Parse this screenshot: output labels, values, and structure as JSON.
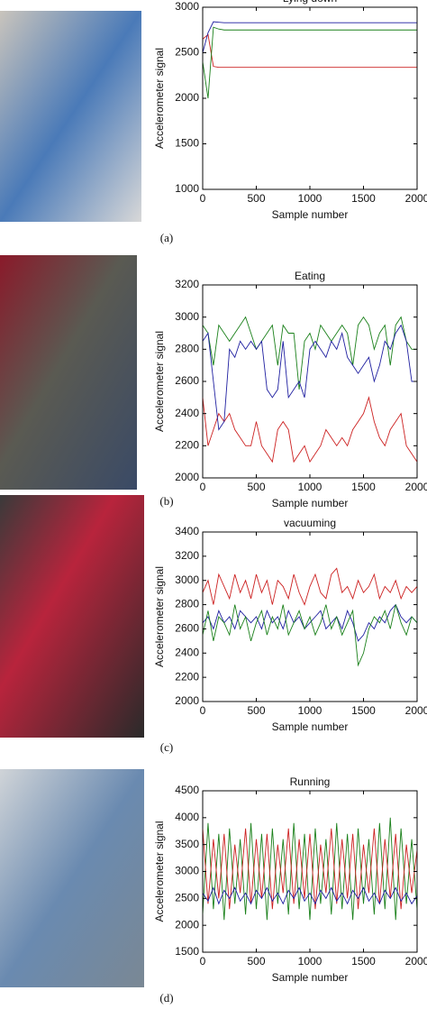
{
  "chart_data": [
    {
      "type": "line",
      "title": "Lying down",
      "xlabel": "Sample number",
      "ylabel": "Accelerometer signal",
      "label": "(a)",
      "xlim": [
        0,
        2000
      ],
      "xticks": [
        0,
        500,
        1000,
        1500,
        2000
      ],
      "ylim": [
        1000,
        3000
      ],
      "yticks": [
        1000,
        1500,
        2000,
        2500,
        3000
      ],
      "x": [
        0,
        50,
        100,
        150,
        200,
        250,
        300,
        350,
        400,
        450,
        500,
        550,
        600,
        650,
        700,
        750,
        800,
        850,
        900,
        950,
        1000,
        1050,
        1100,
        1150,
        1200,
        1250,
        1300,
        1350,
        1400,
        1450,
        1500,
        1550,
        1600,
        1650,
        1700,
        1750,
        1800,
        1850,
        1900,
        1950,
        2000
      ],
      "series": [
        {
          "color": "#cc2020",
          "values": [
            2650,
            2700,
            2350,
            2340,
            2340,
            2340,
            2340,
            2340,
            2340,
            2340,
            2340,
            2340,
            2340,
            2340,
            2340,
            2340,
            2340,
            2340,
            2340,
            2340,
            2340,
            2340,
            2340,
            2340,
            2340,
            2340,
            2340,
            2340,
            2340,
            2340,
            2340,
            2340,
            2340,
            2340,
            2340,
            2340,
            2340,
            2340,
            2340,
            2340,
            2340
          ]
        },
        {
          "color": "#1a801a",
          "values": [
            2400,
            2000,
            2780,
            2760,
            2750,
            2750,
            2750,
            2750,
            2750,
            2750,
            2750,
            2750,
            2750,
            2750,
            2750,
            2750,
            2750,
            2750,
            2750,
            2750,
            2750,
            2750,
            2750,
            2750,
            2750,
            2750,
            2750,
            2750,
            2750,
            2750,
            2750,
            2750,
            2750,
            2750,
            2750,
            2750,
            2750,
            2750,
            2750,
            2750,
            2750
          ]
        },
        {
          "color": "#1f1fa0",
          "values": [
            2500,
            2720,
            2840,
            2835,
            2830,
            2830,
            2830,
            2830,
            2830,
            2830,
            2830,
            2830,
            2830,
            2830,
            2830,
            2830,
            2830,
            2830,
            2830,
            2830,
            2830,
            2830,
            2830,
            2830,
            2830,
            2830,
            2830,
            2830,
            2830,
            2830,
            2830,
            2830,
            2830,
            2830,
            2830,
            2830,
            2830,
            2830,
            2830,
            2830,
            2830
          ]
        }
      ]
    },
    {
      "type": "line",
      "title": "Eating",
      "xlabel": "Sample number",
      "ylabel": "Accelerometer signal",
      "label": "(b)",
      "xlim": [
        0,
        2000
      ],
      "xticks": [
        0,
        500,
        1000,
        1500,
        2000
      ],
      "ylim": [
        2000,
        3200
      ],
      "yticks": [
        2000,
        2200,
        2400,
        2600,
        2800,
        3000,
        3200
      ],
      "x": [
        0,
        50,
        100,
        150,
        200,
        250,
        300,
        350,
        400,
        450,
        500,
        550,
        600,
        650,
        700,
        750,
        800,
        850,
        900,
        950,
        1000,
        1050,
        1100,
        1150,
        1200,
        1250,
        1300,
        1350,
        1400,
        1450,
        1500,
        1550,
        1600,
        1650,
        1700,
        1750,
        1800,
        1850,
        1900,
        1950,
        2000
      ],
      "series": [
        {
          "color": "#cc2020",
          "values": [
            2500,
            2200,
            2300,
            2400,
            2350,
            2400,
            2300,
            2250,
            2200,
            2200,
            2350,
            2200,
            2150,
            2100,
            2300,
            2350,
            2300,
            2100,
            2150,
            2200,
            2100,
            2150,
            2200,
            2300,
            2250,
            2200,
            2250,
            2200,
            2300,
            2350,
            2400,
            2500,
            2350,
            2250,
            2200,
            2300,
            2350,
            2400,
            2200,
            2150,
            2100
          ]
        },
        {
          "color": "#1a801a",
          "values": [
            2950,
            2900,
            2700,
            2950,
            2900,
            2850,
            2900,
            2950,
            3000,
            2900,
            2800,
            2850,
            2900,
            2950,
            2700,
            2950,
            2900,
            2900,
            2550,
            2850,
            2900,
            2800,
            2950,
            2900,
            2850,
            2900,
            2950,
            2900,
            2700,
            2950,
            3000,
            2950,
            2800,
            2900,
            2950,
            2700,
            2950,
            3000,
            2850,
            2800,
            2800
          ]
        },
        {
          "color": "#1f1fa0",
          "values": [
            2850,
            2900,
            2600,
            2300,
            2350,
            2800,
            2750,
            2850,
            2800,
            2850,
            2800,
            2850,
            2550,
            2500,
            2550,
            2850,
            2500,
            2550,
            2600,
            2500,
            2800,
            2850,
            2800,
            2750,
            2850,
            2800,
            2900,
            2750,
            2700,
            2650,
            2700,
            2750,
            2600,
            2700,
            2850,
            2800,
            2900,
            2950,
            2850,
            2600,
            2600
          ]
        }
      ]
    },
    {
      "type": "line",
      "title": "vacuuming",
      "xlabel": "Sample number",
      "ylabel": "Accelerometer signal",
      "label": "(c)",
      "xlim": [
        0,
        2000
      ],
      "xticks": [
        0,
        500,
        1000,
        1500,
        2000
      ],
      "ylim": [
        2000,
        3400
      ],
      "yticks": [
        2000,
        2200,
        2400,
        2600,
        2800,
        3000,
        3200,
        3400
      ],
      "x": [
        0,
        50,
        100,
        150,
        200,
        250,
        300,
        350,
        400,
        450,
        500,
        550,
        600,
        650,
        700,
        750,
        800,
        850,
        900,
        950,
        1000,
        1050,
        1100,
        1150,
        1200,
        1250,
        1300,
        1350,
        1400,
        1450,
        1500,
        1550,
        1600,
        1650,
        1700,
        1750,
        1800,
        1850,
        1900,
        1950,
        2000
      ],
      "series": [
        {
          "color": "#cc2020",
          "values": [
            2900,
            3000,
            2800,
            3050,
            2950,
            2850,
            3050,
            2900,
            3000,
            2850,
            3050,
            2900,
            3000,
            2800,
            3000,
            2950,
            2850,
            3050,
            2900,
            2800,
            2950,
            3050,
            2900,
            2850,
            3050,
            3100,
            2900,
            2950,
            2850,
            3000,
            2900,
            2950,
            3050,
            2850,
            2950,
            2900,
            3000,
            2850,
            2950,
            2900,
            2950
          ]
        },
        {
          "color": "#1f1fa0",
          "values": [
            2650,
            2700,
            2600,
            2750,
            2650,
            2700,
            2600,
            2750,
            2700,
            2650,
            2700,
            2600,
            2750,
            2650,
            2700,
            2600,
            2750,
            2650,
            2700,
            2600,
            2650,
            2700,
            2750,
            2600,
            2650,
            2700,
            2600,
            2750,
            2650,
            2500,
            2550,
            2650,
            2600,
            2700,
            2650,
            2750,
            2800,
            2700,
            2650,
            2700,
            2650
          ]
        },
        {
          "color": "#1a801a",
          "values": [
            2550,
            2750,
            2500,
            2700,
            2650,
            2550,
            2800,
            2600,
            2700,
            2500,
            2650,
            2750,
            2550,
            2700,
            2600,
            2800,
            2550,
            2650,
            2750,
            2600,
            2700,
            2550,
            2650,
            2800,
            2600,
            2700,
            2550,
            2650,
            2750,
            2300,
            2400,
            2600,
            2700,
            2650,
            2750,
            2600,
            2800,
            2650,
            2550,
            2700,
            2650
          ]
        }
      ]
    },
    {
      "type": "line",
      "title": "Running",
      "xlabel": "Sample number",
      "ylabel": "Accelerometer signal",
      "label": "(d)",
      "xlim": [
        0,
        2000
      ],
      "xticks": [
        0,
        500,
        1000,
        1500,
        2000
      ],
      "ylim": [
        1500,
        4500
      ],
      "yticks": [
        1500,
        2000,
        2500,
        3000,
        3500,
        4000,
        4500
      ],
      "x": [
        0,
        50,
        100,
        150,
        200,
        250,
        300,
        350,
        400,
        450,
        500,
        550,
        600,
        650,
        700,
        750,
        800,
        850,
        900,
        950,
        1000,
        1050,
        1100,
        1150,
        1200,
        1250,
        1300,
        1350,
        1400,
        1450,
        1500,
        1550,
        1600,
        1650,
        1700,
        1750,
        1800,
        1850,
        1900,
        1950,
        2000
      ],
      "series": [
        {
          "color": "#1a801a",
          "values": [
            2200,
            3900,
            2300,
            3700,
            2100,
            3800,
            2400,
            3600,
            2200,
            3900,
            2300,
            3700,
            2100,
            3800,
            2400,
            3600,
            2200,
            3900,
            2300,
            3700,
            2100,
            3800,
            2400,
            3600,
            2200,
            3900,
            2300,
            3700,
            2100,
            3800,
            2400,
            3600,
            2200,
            3900,
            2300,
            4000,
            2100,
            3800,
            2400,
            3600,
            2300
          ]
        },
        {
          "color": "#cc2020",
          "values": [
            3800,
            2400,
            3600,
            2500,
            3700,
            2300,
            3500,
            2600,
            3800,
            2400,
            3600,
            2500,
            3700,
            2300,
            3500,
            2600,
            3800,
            2400,
            3600,
            2500,
            3700,
            2300,
            3500,
            2600,
            3800,
            2400,
            3600,
            2500,
            3700,
            2300,
            3500,
            2600,
            3800,
            2400,
            3600,
            2500,
            3700,
            2300,
            3500,
            2600,
            3400
          ]
        },
        {
          "color": "#1f1fa0",
          "values": [
            2600,
            2450,
            2700,
            2400,
            2650,
            2500,
            2700,
            2450,
            2600,
            2400,
            2650,
            2500,
            2700,
            2450,
            2600,
            2400,
            2650,
            2500,
            2700,
            2450,
            2600,
            2400,
            2650,
            2500,
            2700,
            2450,
            2600,
            2400,
            2650,
            2500,
            2700,
            2450,
            2600,
            2400,
            2650,
            2500,
            2700,
            2450,
            2600,
            2400,
            2550
          ]
        }
      ]
    }
  ]
}
